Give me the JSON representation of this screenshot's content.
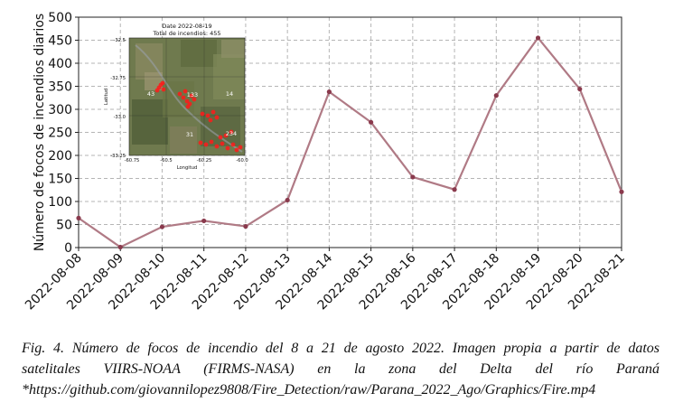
{
  "chart_data": {
    "type": "line",
    "ylabel": "Número de focos de incendios diarios",
    "xlabel": "",
    "categories": [
      "2022-08-08",
      "2022-08-09",
      "2022-08-10",
      "2022-08-11",
      "2022-08-12",
      "2022-08-13",
      "2022-08-14",
      "2022-08-15",
      "2022-08-16",
      "2022-08-17",
      "2022-08-18",
      "2022-08-19",
      "2022-08-20",
      "2022-08-21"
    ],
    "values": [
      64,
      1,
      45,
      58,
      46,
      103,
      338,
      272,
      153,
      126,
      330,
      455,
      344,
      121
    ],
    "ylim": [
      0,
      500
    ],
    "yticks": [
      0,
      50,
      100,
      150,
      200,
      250,
      300,
      350,
      400,
      450,
      500
    ],
    "grid": true,
    "line_color": "#b07a85",
    "marker_color": "#8a3a4d",
    "inset": {
      "title": "Date 2022-08-19",
      "subtitle": "Total de incendios: 455",
      "ylabel": "Latitud",
      "xlabel": "Longitud",
      "yticks": [
        "-32.5",
        "-32.75",
        "-33.0",
        "-33.25"
      ],
      "xticks": [
        "-60.75",
        "-60.5",
        "-60.25",
        "-60.0"
      ],
      "labels": [
        "43",
        "133",
        "14",
        "31",
        "234"
      ]
    }
  },
  "caption": {
    "line1": "Fig. 4. Número de focos de incendio del 8 a 21 de agosto 2022. Imagen propia a partir de datos",
    "line2": "satelitales VIIRS-NOAA (FIRMS-NASA) en la zona del Delta del río Paraná",
    "line3": "*https://github.com/giovannilopez9808/Fire_Detection/raw/Parana_2022_Ago/Graphics/Fire.mp4"
  }
}
